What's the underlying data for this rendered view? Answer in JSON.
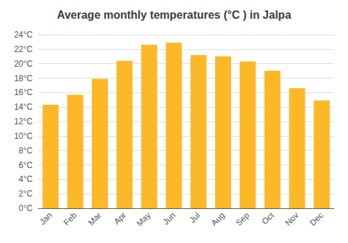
{
  "chart_data": {
    "type": "bar",
    "title": "Average monthly temperatures (°C ) in Jalpa",
    "categories": [
      "Jan",
      "Feb",
      "Mar",
      "Apr",
      "May",
      "Jun",
      "Jul",
      "Aug",
      "Sep",
      "Oct",
      "Nov",
      "Dec"
    ],
    "values": [
      14.3,
      15.7,
      17.9,
      20.4,
      22.6,
      22.9,
      21.2,
      21.0,
      20.3,
      19.0,
      16.6,
      14.9
    ],
    "color": "#FDB827",
    "ylim": [
      0,
      24
    ],
    "yticks": [
      {
        "value": 0,
        "label": "0°C"
      },
      {
        "value": 2,
        "label": "2°C"
      },
      {
        "value": 4,
        "label": "4°C"
      },
      {
        "value": 6,
        "label": "6°C"
      },
      {
        "value": 8,
        "label": "8°C"
      },
      {
        "value": 10,
        "label": "10°C"
      },
      {
        "value": 12,
        "label": "12°C"
      },
      {
        "value": 14,
        "label": "14°C"
      },
      {
        "value": 16,
        "label": "16°C"
      },
      {
        "value": 18,
        "label": "18°C"
      },
      {
        "value": 20,
        "label": "20°C"
      },
      {
        "value": 22,
        "label": "22°C"
      },
      {
        "value": 24,
        "label": "24°C"
      }
    ],
    "grid": true
  }
}
